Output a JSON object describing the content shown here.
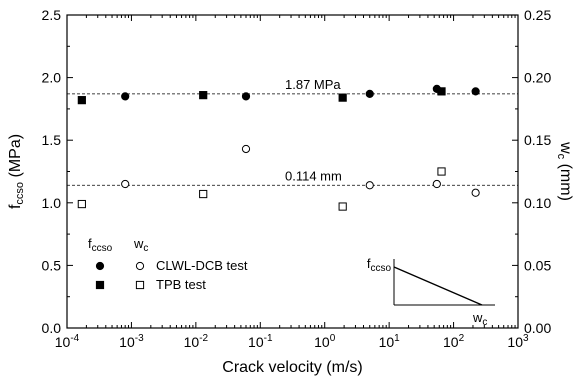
{
  "chart_data": {
    "type": "scatter",
    "x_axis": {
      "label": "Crack velocity (m/s)",
      "scale": "log",
      "range": [
        0.0001,
        1000
      ],
      "ticks": [
        {
          "value": 0.0001,
          "base": "10",
          "exp": "-4"
        },
        {
          "value": 0.001,
          "base": "10",
          "exp": "-3"
        },
        {
          "value": 0.01,
          "base": "10",
          "exp": "-2"
        },
        {
          "value": 0.1,
          "base": "10",
          "exp": "-1"
        },
        {
          "value": 1,
          "base": "10",
          "exp": "0"
        },
        {
          "value": 10,
          "base": "10",
          "exp": "1"
        },
        {
          "value": 100,
          "base": "10",
          "exp": "2"
        },
        {
          "value": 1000,
          "base": "10",
          "exp": "3"
        }
      ]
    },
    "y_left": {
      "label_main": "f",
      "label_sub": "ccso",
      "label_unit": " (MPa)",
      "range": [
        0.0,
        2.5
      ],
      "ticks": [
        "0.0",
        "0.5",
        "1.0",
        "1.5",
        "2.0",
        "2.5"
      ]
    },
    "y_right": {
      "label_main": "w",
      "label_sub": "c",
      "label_unit": " (mm)",
      "range": [
        0.0,
        0.25
      ],
      "ticks": [
        "0.00",
        "0.05",
        "0.10",
        "0.15",
        "0.20",
        "0.25"
      ]
    },
    "reference_lines": [
      {
        "axis": "left",
        "value": 1.87,
        "label": "1.87 MPa"
      },
      {
        "axis": "right",
        "value": 0.114,
        "label": "0.114 mm"
      }
    ],
    "series": [
      {
        "name": "CLWL-DCB test",
        "quantity": "fccso",
        "axis": "left",
        "marker": "circle-filled",
        "points": [
          [
            0.0008,
            1.85
          ],
          [
            0.06,
            1.85
          ],
          [
            5,
            1.87
          ],
          [
            55,
            1.91
          ],
          [
            220,
            1.89
          ]
        ]
      },
      {
        "name": "TPB test",
        "quantity": "fccso",
        "axis": "left",
        "marker": "square-filled",
        "points": [
          [
            0.00017,
            1.82
          ],
          [
            0.013,
            1.86
          ],
          [
            1.9,
            1.84
          ],
          [
            65,
            1.89
          ]
        ]
      },
      {
        "name": "CLWL-DCB test",
        "quantity": "wc",
        "axis": "right",
        "marker": "circle-open",
        "points": [
          [
            0.0008,
            0.115
          ],
          [
            0.06,
            0.143
          ],
          [
            5,
            0.114
          ],
          [
            55,
            0.115
          ],
          [
            220,
            0.108
          ]
        ]
      },
      {
        "name": "TPB test",
        "quantity": "wc",
        "axis": "right",
        "marker": "square-open",
        "points": [
          [
            0.00017,
            0.099
          ],
          [
            0.013,
            0.107
          ],
          [
            1.9,
            0.097
          ],
          [
            65,
            0.125
          ]
        ]
      }
    ],
    "legend": {
      "placement": "bottom-left",
      "header_f_main": "f",
      "header_f_sub": "ccso",
      "header_w_main": "w",
      "header_w_sub": "c",
      "rows": [
        {
          "label": "CLWL-DCB test",
          "f_marker": "circle-filled",
          "w_marker": "circle-open"
        },
        {
          "label": "TPB test",
          "f_marker": "square-filled",
          "w_marker": "square-open"
        }
      ]
    },
    "inset": {
      "placement": "bottom-right",
      "y_label_main": "f",
      "y_label_sub": "ccso",
      "x_label_main": "w",
      "x_label_sub": "c"
    },
    "grid": false
  }
}
